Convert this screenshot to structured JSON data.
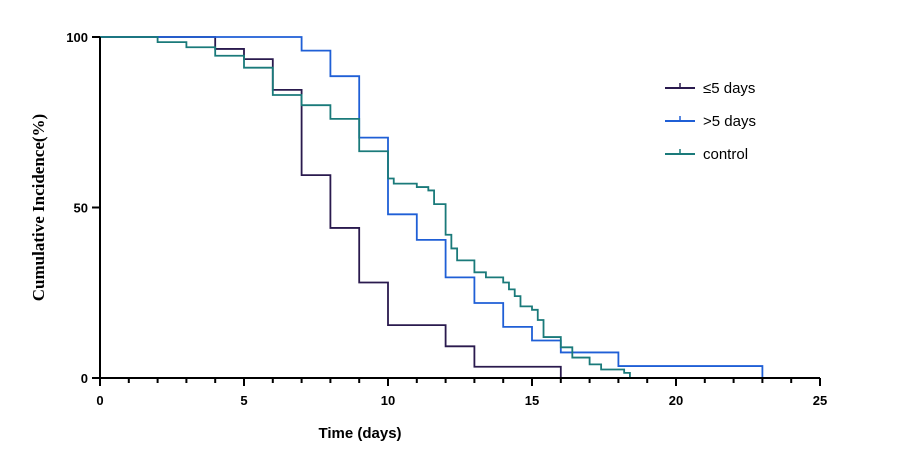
{
  "chart_data": {
    "type": "line",
    "step": true,
    "xlabel": "Time (days)",
    "ylabel": "Cumulative Incidence(%)",
    "xlim": [
      0,
      25
    ],
    "ylim": [
      0,
      100
    ],
    "x_ticks": [
      0,
      5,
      10,
      15,
      20,
      25
    ],
    "y_ticks": [
      0,
      50,
      100
    ],
    "x_minor_step": 1,
    "legend_position": "top-right",
    "series": [
      {
        "name": "≤5 days",
        "color": "#2a1a4e",
        "points": [
          [
            0,
            100
          ],
          [
            4,
            100
          ],
          [
            4,
            96.5
          ],
          [
            5,
            96.5
          ],
          [
            5,
            93.5
          ],
          [
            6,
            93.5
          ],
          [
            6,
            84.5
          ],
          [
            7,
            84.5
          ],
          [
            7,
            59.5
          ],
          [
            8,
            59.5
          ],
          [
            8,
            44
          ],
          [
            9,
            44
          ],
          [
            9,
            28
          ],
          [
            10,
            28
          ],
          [
            10,
            15.5
          ],
          [
            12,
            15.5
          ],
          [
            12,
            9.3
          ],
          [
            13,
            9.3
          ],
          [
            13,
            3.3
          ],
          [
            16,
            3.3
          ],
          [
            16,
            0
          ]
        ]
      },
      {
        "name": ">5 days",
        "color": "#1f5fd6",
        "points": [
          [
            0,
            100
          ],
          [
            7,
            100
          ],
          [
            7,
            96
          ],
          [
            8,
            96
          ],
          [
            8,
            88.5
          ],
          [
            9,
            88.5
          ],
          [
            9,
            70.5
          ],
          [
            10,
            70.5
          ],
          [
            10,
            48
          ],
          [
            11,
            48
          ],
          [
            11,
            40.5
          ],
          [
            12,
            40.5
          ],
          [
            12,
            29.5
          ],
          [
            13,
            29.5
          ],
          [
            13,
            22
          ],
          [
            14,
            22
          ],
          [
            14,
            15
          ],
          [
            15,
            15
          ],
          [
            15,
            11
          ],
          [
            16,
            11
          ],
          [
            16,
            7.5
          ],
          [
            18,
            7.5
          ],
          [
            18,
            3.5
          ],
          [
            23,
            3.5
          ],
          [
            23,
            0
          ]
        ]
      },
      {
        "name": "control",
        "color": "#1a7a7a",
        "points": [
          [
            0,
            100
          ],
          [
            2,
            100
          ],
          [
            2,
            98.5
          ],
          [
            3,
            98.5
          ],
          [
            3,
            97
          ],
          [
            4,
            97
          ],
          [
            4,
            94.5
          ],
          [
            5,
            94.5
          ],
          [
            5,
            91
          ],
          [
            6,
            91
          ],
          [
            6,
            83
          ],
          [
            7,
            83
          ],
          [
            7,
            80
          ],
          [
            8,
            80
          ],
          [
            8,
            76
          ],
          [
            9,
            76
          ],
          [
            9,
            66.5
          ],
          [
            10,
            66.5
          ],
          [
            10,
            58.5
          ],
          [
            10.2,
            58.5
          ],
          [
            10.2,
            57
          ],
          [
            11,
            57
          ],
          [
            11,
            56
          ],
          [
            11.4,
            56
          ],
          [
            11.4,
            55
          ],
          [
            11.6,
            55
          ],
          [
            11.6,
            51
          ],
          [
            12,
            51
          ],
          [
            12,
            42
          ],
          [
            12.2,
            42
          ],
          [
            12.2,
            38
          ],
          [
            12.4,
            38
          ],
          [
            12.4,
            34.5
          ],
          [
            13,
            34.5
          ],
          [
            13,
            31
          ],
          [
            13.4,
            31
          ],
          [
            13.4,
            29.5
          ],
          [
            14,
            29.5
          ],
          [
            14,
            28
          ],
          [
            14.2,
            28
          ],
          [
            14.2,
            26
          ],
          [
            14.4,
            26
          ],
          [
            14.4,
            24
          ],
          [
            14.6,
            24
          ],
          [
            14.6,
            21
          ],
          [
            15,
            21
          ],
          [
            15,
            20
          ],
          [
            15.2,
            20
          ],
          [
            15.2,
            17
          ],
          [
            15.4,
            17
          ],
          [
            15.4,
            12
          ],
          [
            16,
            12
          ],
          [
            16,
            9
          ],
          [
            16.4,
            9
          ],
          [
            16.4,
            6
          ],
          [
            17,
            6
          ],
          [
            17,
            4
          ],
          [
            17.4,
            4
          ],
          [
            17.4,
            2.5
          ],
          [
            18.2,
            2.5
          ],
          [
            18.2,
            1.5
          ],
          [
            18.4,
            1.5
          ],
          [
            18.4,
            0
          ]
        ]
      }
    ]
  }
}
